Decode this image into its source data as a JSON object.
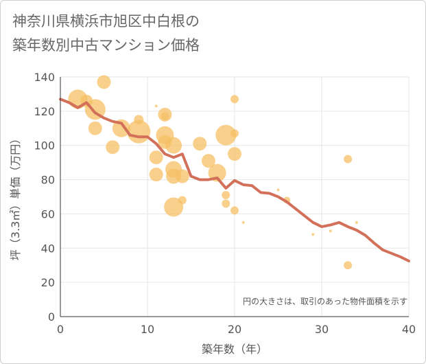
{
  "title_lines": [
    "神奈川県横浜市旭区中白根の",
    "築年数別中古マンション価格"
  ],
  "colors": {
    "bubble": "#f5c064",
    "line": "#d2705a",
    "grid": "#e6e6e6",
    "text": "#555555",
    "title": "#666666"
  },
  "chart_data": {
    "type": "scatter",
    "title": "神奈川県横浜市旭区中白根の築年数別中古マンション価格",
    "xlabel": "築年数（年）",
    "ylabel": "坪（3.3㎡）単価（万円）",
    "xlim": [
      0,
      40
    ],
    "ylim": [
      0,
      140
    ],
    "xticks": [
      0,
      10,
      20,
      30,
      40
    ],
    "yticks": [
      0,
      20,
      40,
      60,
      80,
      100,
      120,
      140
    ],
    "grid": true,
    "note": "円の大きさは、取引のあった物件面積を示す",
    "bubbles": [
      {
        "x": 2,
        "y": 127,
        "size": 14
      },
      {
        "x": 3,
        "y": 126,
        "size": 9
      },
      {
        "x": 4,
        "y": 121,
        "size": 15
      },
      {
        "x": 4,
        "y": 110,
        "size": 10
      },
      {
        "x": 5,
        "y": 137,
        "size": 10
      },
      {
        "x": 6,
        "y": 99,
        "size": 10
      },
      {
        "x": 7,
        "y": 110,
        "size": 13
      },
      {
        "x": 9,
        "y": 115,
        "size": 7
      },
      {
        "x": 9,
        "y": 108,
        "size": 17
      },
      {
        "x": 11,
        "y": 123,
        "size": 2
      },
      {
        "x": 11,
        "y": 93,
        "size": 10
      },
      {
        "x": 11,
        "y": 83,
        "size": 10
      },
      {
        "x": 12,
        "y": 118,
        "size": 10
      },
      {
        "x": 12,
        "y": 117,
        "size": 6
      },
      {
        "x": 12,
        "y": 106,
        "size": 13
      },
      {
        "x": 12,
        "y": 102,
        "size": 10
      },
      {
        "x": 13,
        "y": 100,
        "size": 12
      },
      {
        "x": 13,
        "y": 86,
        "size": 12
      },
      {
        "x": 13,
        "y": 82,
        "size": 11
      },
      {
        "x": 13,
        "y": 64,
        "size": 14
      },
      {
        "x": 14,
        "y": 82,
        "size": 10
      },
      {
        "x": 14,
        "y": 68,
        "size": 6
      },
      {
        "x": 16,
        "y": 101,
        "size": 10
      },
      {
        "x": 17,
        "y": 91,
        "size": 10
      },
      {
        "x": 18,
        "y": 84,
        "size": 13
      },
      {
        "x": 19,
        "y": 106,
        "size": 15
      },
      {
        "x": 19,
        "y": 71,
        "size": 6
      },
      {
        "x": 19,
        "y": 66,
        "size": 6
      },
      {
        "x": 20,
        "y": 127,
        "size": 6
      },
      {
        "x": 20,
        "y": 107,
        "size": 6
      },
      {
        "x": 20,
        "y": 95,
        "size": 10
      },
      {
        "x": 20,
        "y": 62,
        "size": 6
      },
      {
        "x": 21,
        "y": 55,
        "size": 2
      },
      {
        "x": 25,
        "y": 74,
        "size": 2
      },
      {
        "x": 26,
        "y": 68,
        "size": 5
      },
      {
        "x": 29,
        "y": 48,
        "size": 2
      },
      {
        "x": 31,
        "y": 50,
        "size": 2
      },
      {
        "x": 33,
        "y": 92,
        "size": 6
      },
      {
        "x": 33,
        "y": 30,
        "size": 6
      },
      {
        "x": 34,
        "y": 55,
        "size": 2
      }
    ],
    "series": [
      {
        "type": "line",
        "x": [
          0,
          1,
          2,
          3,
          4,
          5,
          6,
          7,
          8,
          9,
          10,
          11,
          12,
          13,
          14,
          15,
          16,
          17,
          18,
          19,
          20,
          21,
          22,
          23,
          24,
          25,
          26,
          27,
          28,
          29,
          30,
          31,
          32,
          33,
          34,
          35,
          36,
          37,
          38,
          39,
          40
        ],
        "y": [
          127,
          125,
          122,
          125,
          119,
          116,
          114,
          113,
          106,
          105,
          105,
          101,
          95,
          93,
          95,
          82,
          80,
          80,
          81,
          75,
          79.5,
          77,
          76.5,
          72.5,
          72,
          70,
          67,
          63,
          59,
          55,
          52.5,
          53.5,
          55,
          52.5,
          50.5,
          47.5,
          43,
          39,
          37,
          35,
          32.5
        ]
      }
    ]
  }
}
